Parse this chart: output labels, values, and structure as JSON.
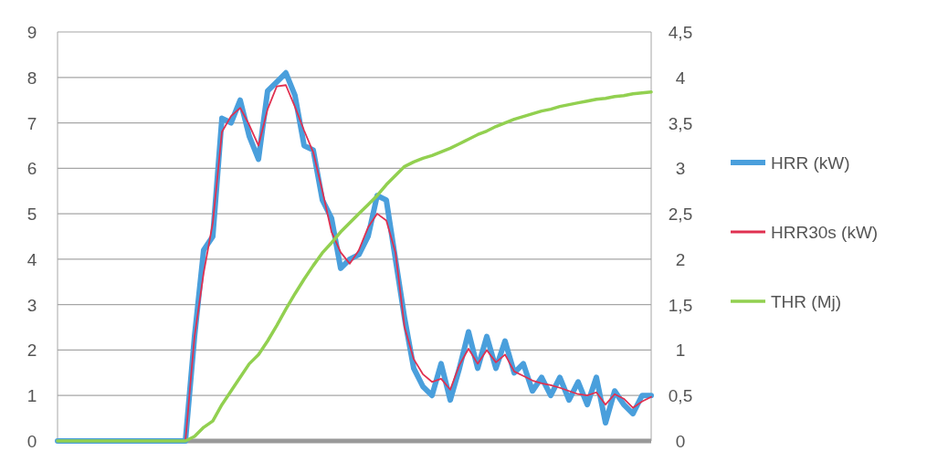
{
  "chart_data": {
    "type": "line",
    "categories": [
      null,
      null,
      null,
      null,
      null,
      null,
      null,
      null,
      null,
      null,
      null,
      null,
      null,
      null,
      null,
      null,
      null,
      null,
      null,
      null,
      null,
      null,
      null,
      null,
      null,
      null,
      null,
      null,
      null,
      null,
      null,
      null,
      null,
      null,
      null,
      null,
      null,
      null,
      null,
      null,
      null,
      null,
      null,
      null,
      null,
      null,
      null,
      null,
      null,
      null,
      null,
      null,
      null,
      null,
      null,
      null,
      null,
      null,
      null,
      null,
      null,
      null,
      null,
      null,
      null,
      null
    ],
    "series": [
      {
        "name": "HRR (kW)",
        "color": "#4a9fdc",
        "values": [
          0,
          0,
          0,
          0,
          0,
          0,
          0,
          0,
          0,
          0,
          0,
          0,
          0,
          0,
          0,
          2.3,
          4.2,
          4.5,
          7.1,
          7.0,
          7.5,
          6.7,
          6.2,
          7.7,
          7.9,
          8.1,
          7.6,
          6.5,
          6.4,
          5.3,
          4.9,
          3.8,
          4.0,
          4.1,
          4.5,
          5.4,
          5.3,
          4.0,
          2.7,
          1.6,
          1.2,
          1.0,
          1.7,
          0.9,
          1.6,
          2.4,
          1.6,
          2.3,
          1.6,
          2.2,
          1.5,
          1.7,
          1.1,
          1.4,
          1.0,
          1.4,
          0.9,
          1.3,
          0.8,
          1.4,
          0.4,
          1.1,
          0.8,
          0.6,
          1.0,
          1.0
        ]
      },
      {
        "name": "HRR30s (kW)",
        "color": "#e03050",
        "values": [
          null,
          null,
          null,
          null,
          null,
          null,
          null,
          null,
          null,
          null,
          null,
          null,
          null,
          null,
          0,
          2.3,
          3.7,
          4.8,
          6.8,
          7.15,
          7.33,
          6.95,
          6.5,
          7.3,
          7.8,
          7.83,
          7.35,
          6.83,
          6.35,
          5.5,
          4.6,
          4.15,
          3.9,
          4.2,
          4.7,
          5.0,
          4.85,
          4.15,
          2.5,
          1.8,
          1.47,
          1.3,
          1.37,
          1.13,
          1.67,
          2.03,
          1.7,
          2.0,
          1.73,
          1.9,
          1.53,
          1.43,
          1.33,
          1.27,
          1.23,
          1.17,
          1.1,
          1.03,
          1.0,
          1.07,
          0.8,
          1.03,
          0.93,
          0.73,
          0.87,
          0.97
        ]
      },
      {
        "name": "THR (Mj)",
        "color": "#92d050",
        "axis": "y2",
        "values": [
          0,
          0,
          0,
          0,
          0,
          0,
          0,
          0,
          0,
          0,
          0,
          0,
          0,
          0,
          0,
          0.05,
          0.15,
          0.22,
          0.4,
          0.55,
          0.7,
          0.85,
          0.95,
          1.1,
          1.27,
          1.45,
          1.62,
          1.78,
          1.93,
          2.07,
          2.18,
          2.3,
          2.4,
          2.5,
          2.6,
          2.7,
          2.82,
          2.92,
          3.02,
          3.07,
          3.11,
          3.14,
          3.18,
          3.22,
          3.27,
          3.32,
          3.37,
          3.41,
          3.46,
          3.5,
          3.54,
          3.57,
          3.6,
          3.63,
          3.65,
          3.68,
          3.7,
          3.72,
          3.74,
          3.76,
          3.77,
          3.79,
          3.8,
          3.82,
          3.83,
          3.84
        ]
      }
    ],
    "ylim": [
      0,
      9
    ],
    "yticks": [
      0,
      1,
      2,
      3,
      4,
      5,
      6,
      7,
      8,
      9
    ],
    "y2lim": [
      0,
      4.5
    ],
    "y2ticks": [
      0,
      {
        "value": 0.5,
        "label": "0,5"
      },
      1,
      {
        "value": 1.5,
        "label": "1,5"
      },
      2,
      {
        "value": 2.5,
        "label": "2,5"
      },
      3,
      {
        "value": 3.5,
        "label": "3,5"
      },
      4,
      {
        "value": 4.5,
        "label": "4,5"
      }
    ],
    "grid": "y",
    "legend": "right",
    "marker": "none",
    "line_style": "solid"
  }
}
